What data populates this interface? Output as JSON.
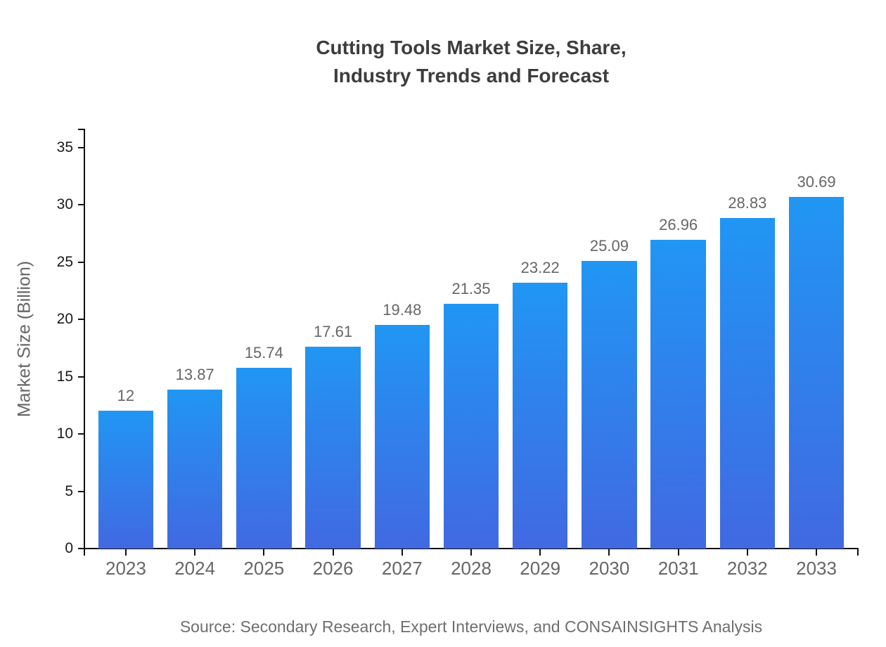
{
  "chart": {
    "title": "Cutting Tools Market Size, Share,\nIndustry Trends and Forecast",
    "source": "Source: Secondary Research, Expert Interviews, and CONSAINSIGHTS Analysis"
  },
  "chart_data": {
    "type": "bar",
    "title": "Cutting Tools Market Size, Share, Industry Trends and Forecast",
    "categories": [
      "2023",
      "2024",
      "2025",
      "2026",
      "2027",
      "2028",
      "2029",
      "2030",
      "2031",
      "2032",
      "2033"
    ],
    "values": [
      12,
      13.87,
      15.74,
      17.61,
      19.48,
      21.35,
      23.22,
      25.09,
      26.96,
      28.83,
      30.69
    ],
    "value_labels": [
      "12",
      "13.87",
      "15.74",
      "17.61",
      "19.48",
      "21.35",
      "23.22",
      "25.09",
      "26.96",
      "28.83",
      "30.69"
    ],
    "xlabel": "",
    "ylabel": "Market Size (Billion)",
    "ylim": [
      0,
      35
    ],
    "y_ticks": [
      0,
      5,
      10,
      15,
      20,
      25,
      30,
      35
    ],
    "grid": false,
    "legend": "none",
    "colors": {
      "bar_gradient_top": "#2196F3",
      "bar_gradient_bottom": "#4169E1",
      "axis": "#111111",
      "tick_label": "#1a1a1a",
      "category_label": "#666666",
      "value_label": "#666666",
      "title": "#3d3d3d",
      "source": "#6e6e6e"
    }
  }
}
